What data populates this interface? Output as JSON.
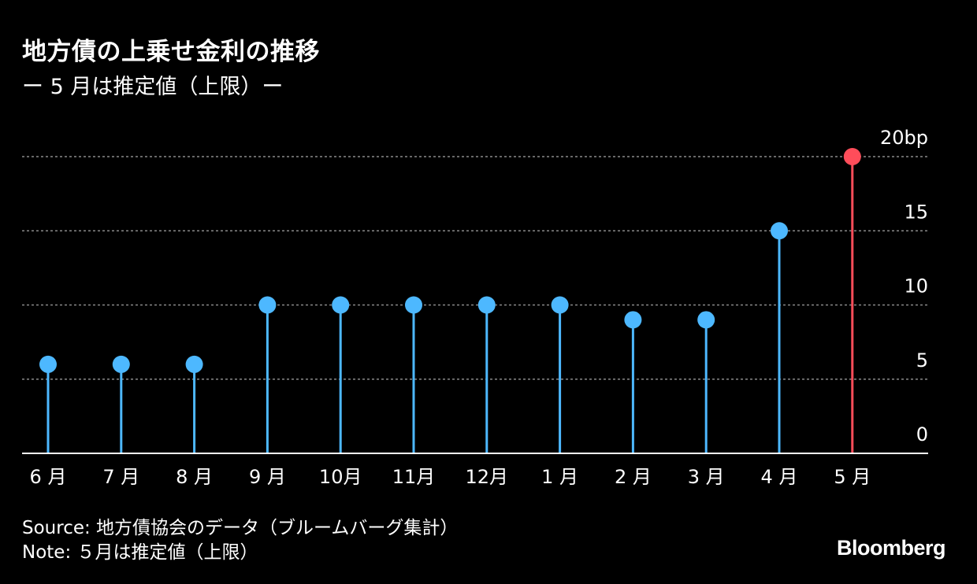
{
  "title": "地方債の上乗せ金利の推移",
  "subtitle": "ー 5 月は推定値（上限）ー",
  "chart_data": {
    "type": "lollipop",
    "categories": [
      "6 月",
      "7 月",
      "8 月",
      "9 月",
      "10月",
      "11月",
      "12月",
      "1 月",
      "2 月",
      "3 月",
      "4 月",
      "5 月"
    ],
    "values": [
      6,
      6,
      6,
      10,
      10,
      10,
      10,
      10,
      9,
      9,
      15,
      20
    ],
    "highlight_index": 11,
    "yticks": [
      "0",
      "5",
      "10",
      "15",
      "20bp"
    ],
    "ytick_values": [
      0,
      5,
      10,
      15,
      20
    ],
    "ylim": [
      0,
      20
    ],
    "grid": true,
    "colors": {
      "normal": "#4db8ff",
      "highlight": "#ff4d5a",
      "grid": "#8a8a8a",
      "baseline": "#ffffff"
    }
  },
  "footer": {
    "source": "Source: 地方債協会のデータ（ブルームバーグ集計）",
    "note": "Note: ５月は推定値（上限）"
  },
  "brand": "Bloomberg"
}
